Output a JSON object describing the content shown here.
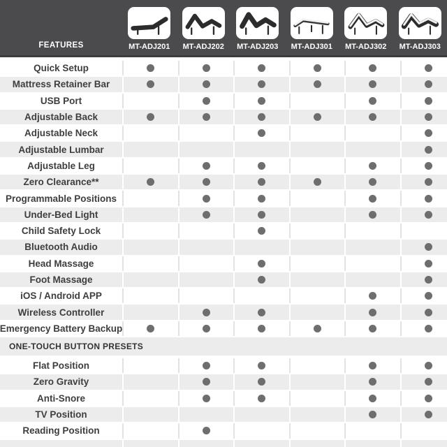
{
  "header": {
    "features_label": "FEATURES",
    "products": [
      {
        "model": "MT-ADJ201",
        "icon": "bed-flat-dark-icon"
      },
      {
        "model": "MT-ADJ202",
        "icon": "bed-head-foot-raised-dark-icon"
      },
      {
        "model": "MT-ADJ203",
        "icon": "bed-head-foot-raised-thick-dark-icon"
      },
      {
        "model": "MT-ADJ301",
        "icon": "bed-frame-flat-light-icon"
      },
      {
        "model": "MT-ADJ302",
        "icon": "bed-head-raised-light-icon"
      },
      {
        "model": "MT-ADJ303",
        "icon": "bed-head-raised-mattress-icon"
      }
    ]
  },
  "features": {
    "rows": [
      {
        "label": "Quick Setup",
        "availability": [
          true,
          true,
          true,
          true,
          true,
          true
        ]
      },
      {
        "label": "Mattress Retainer Bar",
        "availability": [
          true,
          true,
          true,
          true,
          true,
          true
        ]
      },
      {
        "label": "USB Port",
        "availability": [
          false,
          true,
          true,
          false,
          true,
          true
        ]
      },
      {
        "label": "Adjustable Back",
        "availability": [
          true,
          true,
          true,
          true,
          true,
          true
        ]
      },
      {
        "label": "Adjustable Neck",
        "availability": [
          false,
          false,
          true,
          false,
          false,
          true
        ]
      },
      {
        "label": "Adjustable Lumbar",
        "availability": [
          false,
          false,
          false,
          false,
          false,
          true
        ]
      },
      {
        "label": "Adjustable Leg",
        "availability": [
          false,
          true,
          true,
          false,
          true,
          true
        ]
      },
      {
        "label": "Zero Clearance**",
        "availability": [
          true,
          true,
          true,
          true,
          true,
          true
        ]
      },
      {
        "label": "Programmable Positions",
        "availability": [
          false,
          true,
          true,
          false,
          true,
          true
        ]
      },
      {
        "label": "Under-Bed Light",
        "availability": [
          false,
          true,
          true,
          false,
          true,
          true
        ]
      },
      {
        "label": "Child Safety Lock",
        "availability": [
          false,
          false,
          true,
          false,
          false,
          false
        ]
      },
      {
        "label": "Bluetooth Audio",
        "availability": [
          false,
          false,
          false,
          false,
          false,
          true
        ]
      },
      {
        "label": "Head Massage",
        "availability": [
          false,
          false,
          true,
          false,
          false,
          true
        ]
      },
      {
        "label": "Foot Massage",
        "availability": [
          false,
          false,
          true,
          false,
          false,
          true
        ]
      },
      {
        "label": "iOS / Android APP",
        "availability": [
          false,
          false,
          false,
          false,
          true,
          true
        ]
      },
      {
        "label": "Wireless Controller",
        "availability": [
          false,
          true,
          true,
          false,
          true,
          true
        ]
      },
      {
        "label": "Emergency Battery Backup",
        "availability": [
          true,
          true,
          true,
          true,
          true,
          true
        ]
      }
    ]
  },
  "presets_section": {
    "title": "ONE-TOUCH BUTTON PRESETS",
    "rows": [
      {
        "label": "Flat Position",
        "availability": [
          false,
          true,
          true,
          false,
          true,
          true
        ]
      },
      {
        "label": "Zero Gravity",
        "availability": [
          false,
          true,
          true,
          false,
          true,
          true
        ]
      },
      {
        "label": "Anti-Snore",
        "availability": [
          false,
          true,
          true,
          false,
          true,
          true
        ]
      },
      {
        "label": "TV Position",
        "availability": [
          false,
          false,
          false,
          false,
          true,
          true
        ]
      },
      {
        "label": "Reading Position",
        "availability": [
          false,
          true,
          false,
          false,
          false,
          false
        ]
      }
    ]
  },
  "colors": {
    "header_bg": "#4b4b4d",
    "row_alt_bg": "#ececec",
    "dot": "#6e6e6e",
    "label_text": "#3e3e3e"
  },
  "chart_data": {
    "type": "table",
    "title": "Adjustable base feature comparison",
    "columns": [
      "FEATURES",
      "MT-ADJ201",
      "MT-ADJ202",
      "MT-ADJ203",
      "MT-ADJ301",
      "MT-ADJ302",
      "MT-ADJ303"
    ],
    "rows": [
      [
        "Quick Setup",
        true,
        true,
        true,
        true,
        true,
        true
      ],
      [
        "Mattress Retainer Bar",
        true,
        true,
        true,
        true,
        true,
        true
      ],
      [
        "USB Port",
        false,
        true,
        true,
        false,
        true,
        true
      ],
      [
        "Adjustable Back",
        true,
        true,
        true,
        true,
        true,
        true
      ],
      [
        "Adjustable Neck",
        false,
        false,
        true,
        false,
        false,
        true
      ],
      [
        "Adjustable Lumbar",
        false,
        false,
        false,
        false,
        false,
        true
      ],
      [
        "Adjustable Leg",
        false,
        true,
        true,
        false,
        true,
        true
      ],
      [
        "Zero Clearance**",
        true,
        true,
        true,
        true,
        true,
        true
      ],
      [
        "Programmable Positions",
        false,
        true,
        true,
        false,
        true,
        true
      ],
      [
        "Under-Bed Light",
        false,
        true,
        true,
        false,
        true,
        true
      ],
      [
        "Child Safety Lock",
        false,
        false,
        true,
        false,
        false,
        false
      ],
      [
        "Bluetooth Audio",
        false,
        false,
        false,
        false,
        false,
        true
      ],
      [
        "Head Massage",
        false,
        false,
        true,
        false,
        false,
        true
      ],
      [
        "Foot Massage",
        false,
        false,
        true,
        false,
        false,
        true
      ],
      [
        "iOS / Android APP",
        false,
        false,
        false,
        false,
        true,
        true
      ],
      [
        "Wireless Controller",
        false,
        true,
        true,
        false,
        true,
        true
      ],
      [
        "Emergency Battery Backup",
        true,
        true,
        true,
        true,
        true,
        true
      ],
      [
        "ONE-TOUCH BUTTON PRESETS",
        null,
        null,
        null,
        null,
        null,
        null
      ],
      [
        "Flat Position",
        false,
        true,
        true,
        false,
        true,
        true
      ],
      [
        "Zero Gravity",
        false,
        true,
        true,
        false,
        true,
        true
      ],
      [
        "Anti-Snore",
        false,
        true,
        true,
        false,
        true,
        true
      ],
      [
        "TV Position",
        false,
        false,
        false,
        false,
        true,
        true
      ],
      [
        "Reading Position",
        false,
        true,
        false,
        false,
        false,
        false
      ]
    ]
  }
}
